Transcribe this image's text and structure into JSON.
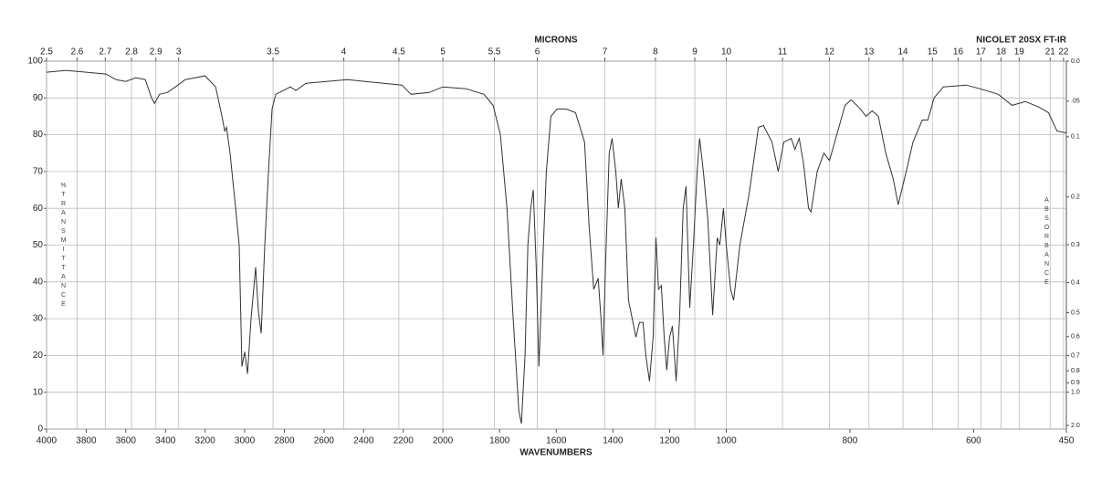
{
  "chart_data": {
    "type": "line",
    "title": "NICOLET 20SX FT-IR",
    "x_label": "WAVENUMBERS",
    "x2_label": "MICRONS",
    "y_label": "%TRANSMITTANCE",
    "y2_label": "ABSORBANCE",
    "color": "#333333",
    "grid": true,
    "xlim": [
      4000,
      450
    ],
    "xticks": [
      4000,
      3800,
      3600,
      3400,
      3200,
      3000,
      2800,
      2600,
      2400,
      2200,
      2000,
      1800,
      1600,
      1400,
      1200,
      1000,
      800,
      600,
      450
    ],
    "x2ticks": [
      2.5,
      2.6,
      2.7,
      2.8,
      2.9,
      3,
      3.5,
      4,
      4.5,
      5,
      5.5,
      6,
      7,
      8,
      9,
      10,
      11,
      12,
      13,
      14,
      15,
      16,
      17,
      18,
      19,
      21,
      22
    ],
    "ylim": [
      0,
      100
    ],
    "yticks": [
      0,
      10,
      20,
      30,
      40,
      50,
      60,
      70,
      80,
      90,
      100
    ],
    "y2scale": "absorbance",
    "y2ticks": [
      {
        "value": 0,
        "label": "0.0"
      },
      {
        "value": 0.05,
        "label": ".05"
      },
      0.1,
      0.2,
      0.3,
      0.4,
      0.5,
      0.6,
      0.7,
      0.8,
      0.9,
      {
        "value": 1,
        "label": "1.0"
      },
      {
        "value": 2,
        "label": "2.0"
      }
    ],
    "x": [
      4000,
      3900,
      3800,
      3700,
      3650,
      3600,
      3550,
      3502,
      3470,
      3455,
      3430,
      3390,
      3350,
      3300,
      3200,
      3147,
      3115,
      3101,
      3092,
      3074,
      3046,
      3028,
      3014,
      3000,
      2986,
      2968,
      2945,
      2931,
      2917,
      2899,
      2880,
      2862,
      2843,
      2806,
      2770,
      2742,
      2691,
      2484,
      2392,
      2207,
      2161,
      2069,
      2000,
      1919,
      1855,
      1823,
      1797,
      1774,
      1752,
      1732,
      1723,
      1710,
      1700,
      1690,
      1681,
      1671,
      1661,
      1648,
      1635,
      1619,
      1597,
      1565,
      1532,
      1500,
      1484,
      1468,
      1452,
      1442,
      1435,
      1426,
      1413,
      1403,
      1390,
      1381,
      1371,
      1358,
      1345,
      1332,
      1319,
      1306,
      1294,
      1284,
      1271,
      1258,
      1248,
      1239,
      1229,
      1219,
      1210,
      1200,
      1190,
      1177,
      1165,
      1152,
      1142,
      1129,
      1116,
      1103,
      1094,
      1081,
      1065,
      1048,
      1032,
      1023,
      1010,
      1000,
      993,
      988,
      978,
      963,
      948,
      940,
      926,
      916,
      907,
      895,
      889,
      882,
      875,
      867,
      863,
      853,
      842,
      833,
      823,
      808,
      798,
      783,
      774,
      764,
      754,
      742,
      730,
      722,
      709,
      698,
      683,
      674,
      664,
      649,
      612,
      590,
      560,
      538,
      516,
      494,
      479,
      465,
      450
    ],
    "values": [
      97,
      97.5,
      97,
      96.5,
      95,
      94.5,
      95.5,
      95,
      90,
      88.5,
      91,
      91.5,
      93,
      95,
      96,
      93,
      85,
      81,
      82,
      75,
      60,
      50,
      17,
      21,
      15,
      30,
      44,
      32,
      26,
      50,
      70,
      87,
      91,
      92,
      93,
      92,
      94,
      95,
      94.5,
      93.5,
      91,
      91.5,
      93,
      92.5,
      91,
      88,
      80,
      60,
      30,
      5,
      1.5,
      20,
      50,
      60,
      65,
      45,
      17,
      45,
      70,
      85,
      87,
      87,
      86,
      78,
      55,
      38,
      41,
      30,
      20,
      45,
      75,
      79,
      70,
      60,
      68,
      60,
      35,
      30,
      25,
      29,
      29,
      20,
      13,
      25,
      52,
      38,
      39,
      25,
      16,
      25,
      28,
      13,
      30,
      60,
      66,
      33,
      50,
      70,
      79,
      70,
      57,
      31,
      52,
      50,
      60,
      50,
      38,
      35,
      50,
      64,
      82,
      82.5,
      78,
      70,
      78,
      79,
      76,
      79,
      72,
      60,
      59,
      70,
      75,
      73,
      79,
      88,
      89.5,
      87,
      85,
      86.5,
      85,
      75,
      68,
      61,
      70,
      78,
      84,
      84,
      90,
      93,
      93.5,
      92.5,
      91,
      88,
      89,
      87.5,
      86,
      81,
      80.5
    ]
  }
}
